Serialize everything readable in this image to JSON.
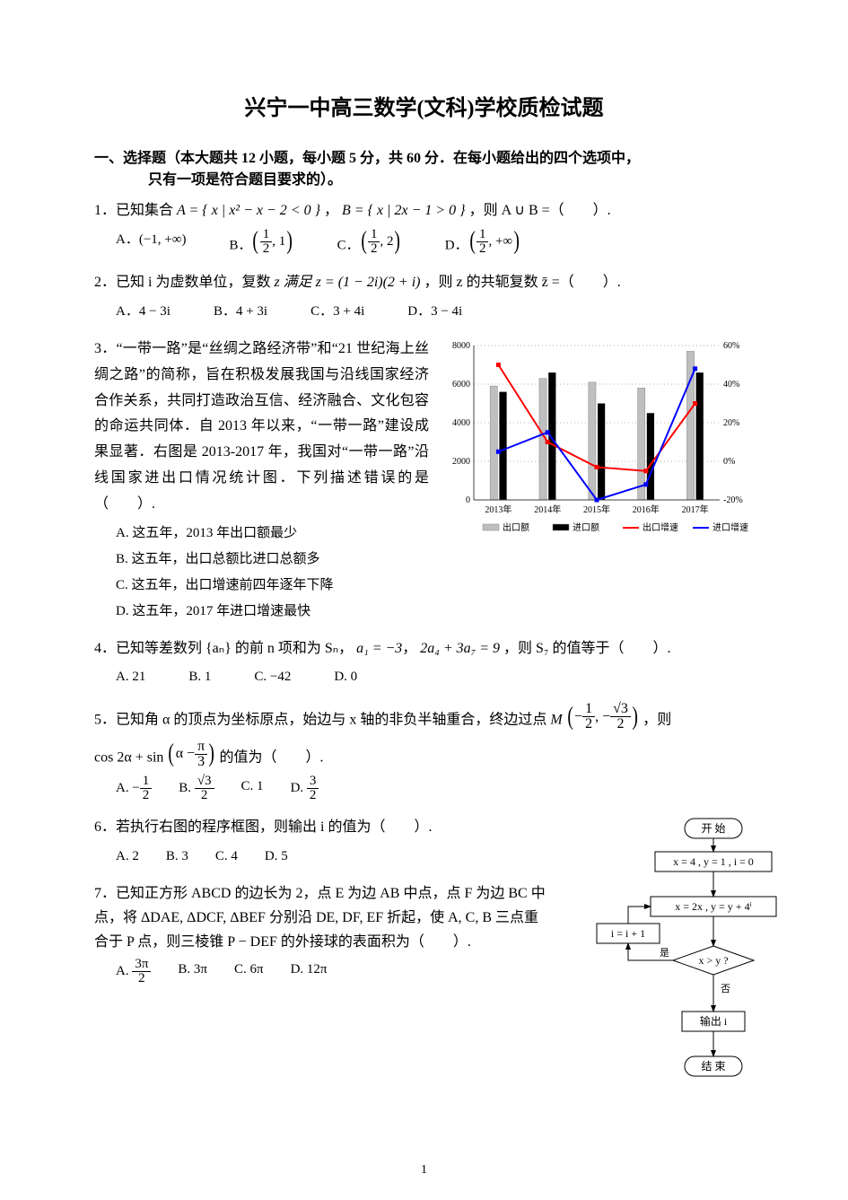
{
  "title": "兴宁一中高三数学(文科)学校质检试题",
  "page_number": "1",
  "section1": {
    "heading_l1": "一、选择题（本大题共 12 小题，每小题 5 分，共 60 分．在每小题给出的四个选项中，",
    "heading_l2": "只有一项是符合题目要求的）。"
  },
  "q1": {
    "stem_pre": "1．已知集合 ",
    "A_def": "A = { x | x² − x − 2 < 0 }",
    "comma1": " ，",
    "B_def": "B = { x | 2x − 1 > 0 }",
    "tail": " ，则 A ∪ B =（　　）.",
    "optA_l": "A．",
    "optA": "(−1, +∞)",
    "optB_l": "B．",
    "optB_num": "1",
    "optB_den": "2",
    "optB_r": ", 1",
    "optC_l": "C．",
    "optC_num": "1",
    "optC_den": "2",
    "optC_r": ", 2",
    "optD_l": "D．",
    "optD_num": "1",
    "optD_den": "2",
    "optD_r": ",  +∞"
  },
  "q2": {
    "stem_pre": "2．已知 i 为虚数单位，复数 ",
    "z_sat": "z 满足 z = (1 − 2i)(2 + i)",
    "tail": "，则 z 的共轭复数 z̄ =（　　）.",
    "optA": "A．4 − 3i",
    "optB": "B．4 + 3i",
    "optC": "C．3 + 4i",
    "optD": "D．3 − 4i"
  },
  "q3": {
    "text": "3．“一带一路”是“丝绸之路经济带”和“21 世纪海上丝绸之路”的简称，旨在积极发展我国与沿线国家经济合作关系，共同打造政治互信、经济融合、文化包容的命运共同体．自 2013 年以来，“一带一路”建设成果显著．右图是 2013-2017 年，我国对“一带一路”沿线国家进出口情况统计图．下列描述错误的是（　　）.",
    "optA": "A. 这五年，2013 年出口额最少",
    "optB": "B. 这五年，出口总额比进口总额多",
    "optC": "C. 这五年，出口增速前四年逐年下降",
    "optD": "D. 这五年，2017 年进口增速最快",
    "chart": {
      "type": "bar+line",
      "categories": [
        "2013年",
        "2014年",
        "2015年",
        "2016年",
        "2017年"
      ],
      "export_bars": [
        5900,
        6300,
        6100,
        5800,
        7700
      ],
      "import_bars": [
        5600,
        6600,
        5000,
        4500,
        6600
      ],
      "export_growth_pct": [
        50,
        10,
        -3,
        -5,
        30
      ],
      "import_growth_pct": [
        5,
        15,
        -20,
        -12,
        48
      ],
      "y_left": {
        "min": 0,
        "max": 8000,
        "ticks": [
          0,
          2000,
          4000,
          6000,
          8000
        ]
      },
      "y_right": {
        "min": -20,
        "max": 60,
        "ticks": [
          -20,
          0,
          20,
          40,
          60
        ],
        "suffix": "%"
      },
      "colors": {
        "export_bar": "#bfbfbf",
        "import_bar": "#000000",
        "export_line": "#ff0000",
        "import_line": "#0000ff",
        "grid": "#b0b0b0",
        "axis": "#404040",
        "background": "#ffffff"
      },
      "labels": {
        "legend": [
          "出口额",
          "进口额",
          "出口增速",
          "进口增速"
        ]
      },
      "bar_width": 0.3,
      "grid": "horizontal-dots"
    }
  },
  "q4": {
    "stem_pre": "4．已知等差数列 {aₙ} 的前 n 项和为 Sₙ，",
    "cond1": "a₁ = −3",
    "cond2": "2a₄ + 3a₇ = 9",
    "tail": "，则 S₇ 的值等于（　　）.",
    "optA": "A. 21",
    "optB": "B. 1",
    "optC": "C. −42",
    "optD": "D. 0"
  },
  "q5": {
    "stem1": "5．已知角 α 的顶点为坐标原点，始边与 x 轴的非负半轴重合，终边过点 ",
    "M_l": "M",
    "Mx_num": "1",
    "Mx_den": "2",
    "My_num": "√3",
    "My_den": "2",
    "stem_tail1": "，则",
    "stem2_pre": "cos 2α + sin",
    "sin_arg_l": "α − ",
    "sin_num": "π",
    "sin_den": "3",
    "stem2_tail": " 的值为（　　）.",
    "optA_l": "A. −",
    "optA_num": "1",
    "optA_den": "2",
    "optB_l": "B. ",
    "optB_num": "√3",
    "optB_den": "2",
    "optC": "C. 1",
    "optD_l": "D. ",
    "optD_num": "3",
    "optD_den": "2"
  },
  "q6": {
    "stem": "6．若执行右图的程序框图，则输出 i 的值为（　　）.",
    "optA": "A. 2",
    "optB": "B. 3",
    "optC": "C. 4",
    "optD": "D. 5",
    "flowchart": {
      "nodes": [
        {
          "id": "start",
          "label": "开 始",
          "shape": "terminator"
        },
        {
          "id": "init",
          "label": "x = 4 , y = 1 , i = 0",
          "shape": "process"
        },
        {
          "id": "update",
          "label": "x = 2x ,  y = y + 4ⁱ",
          "shape": "process"
        },
        {
          "id": "inc",
          "label": "i = i + 1",
          "shape": "process"
        },
        {
          "id": "cond",
          "label": "x > y ?",
          "shape": "decision"
        },
        {
          "id": "out",
          "label": "输出 i",
          "shape": "process"
        },
        {
          "id": "end",
          "label": "结 束",
          "shape": "terminator"
        }
      ],
      "edges": [
        [
          "start",
          "init"
        ],
        [
          "init",
          "update"
        ],
        [
          "update",
          "cond"
        ],
        [
          "cond",
          "inc",
          "是"
        ],
        [
          "inc",
          "update"
        ],
        [
          "cond",
          "out",
          "否"
        ],
        [
          "out",
          "end"
        ]
      ],
      "colors": {
        "stroke": "#000",
        "fill": "#fff"
      }
    }
  },
  "q7": {
    "stem": "7．已知正方形 ABCD 的边长为 2，点 E 为边 AB 中点，点 F 为边 BC 中点，将 ΔDAE, ΔDCF, ΔBEF 分别沿 DE, DF, EF 折起，使 A, C, B 三点重合于 P 点，则三棱锥 P − DEF 的外接球的表面积为（　　）.",
    "optA_l": "A. ",
    "optA_num": "3π",
    "optA_den": "2",
    "optB": "B. 3π",
    "optC": "C. 6π",
    "optD": "D. 12π"
  }
}
